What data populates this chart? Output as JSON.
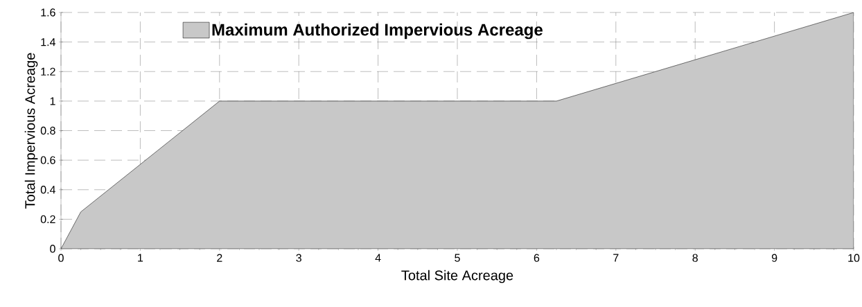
{
  "chart_data": {
    "type": "area",
    "xlabel": "Total Site Acreage",
    "ylabel": "Total Impervious Acreage",
    "x": [
      0,
      0.25,
      2,
      6.25,
      10
    ],
    "series": [
      {
        "name": "Maximum Authorized Impervious Acreage",
        "color": "#c8c8c8",
        "values": [
          0,
          0.25,
          1,
          1,
          1.6
        ]
      }
    ],
    "xlim": [
      0,
      10
    ],
    "ylim": [
      0,
      1.6
    ],
    "xticks": [
      0,
      1,
      2,
      3,
      4,
      5,
      6,
      7,
      8,
      9,
      10
    ],
    "yticks": [
      0,
      0.2,
      0.4,
      0.6,
      0.8,
      1,
      1.2,
      1.4,
      1.6
    ],
    "grid": true,
    "legend": "top left"
  }
}
